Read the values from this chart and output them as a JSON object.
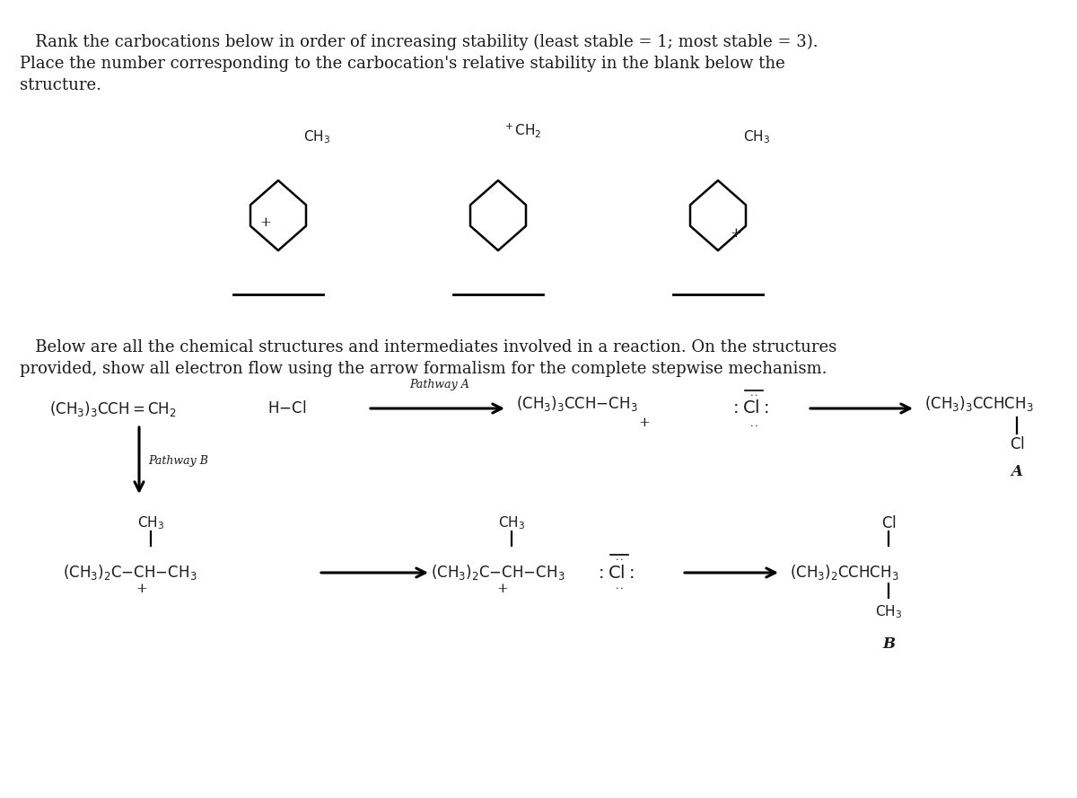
{
  "bg_color": "#ffffff",
  "text_color": "#1a1a1a",
  "title_line1": "   Rank the carbocations below in order of increasing stability (least stable = 1; most stable = 3).",
  "title_line2": "Place the number corresponding to the carbocation's relative stability in the blank below the",
  "title_line3": "structure.",
  "section2_line1": "   Below are all the chemical structures and intermediates involved in a reaction. On the structures",
  "section2_line2": "provided, show all electron flow using the arrow formalism for the complete stepwise mechanism.",
  "pathway_a": "Pathway A",
  "pathway_b": "Pathway B",
  "label_a": "A",
  "label_b": "B",
  "fs_body": 13.5,
  "fs_chem": 12,
  "fs_small": 9
}
